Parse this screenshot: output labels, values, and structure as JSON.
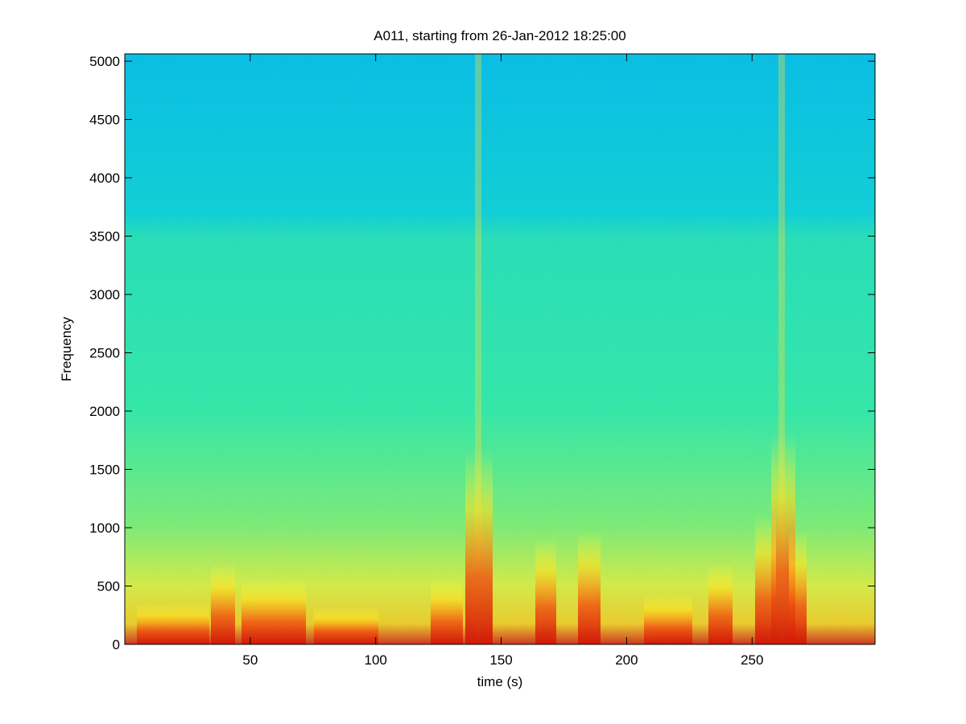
{
  "chart_data": {
    "type": "spectrogram",
    "title": "A011, starting from 26-Jan-2012 18:25:00",
    "x_label": "time (s)",
    "y_label": "Frequency",
    "xlim": [
      0,
      299
    ],
    "xticks": [
      50,
      100,
      150,
      200,
      250
    ],
    "ylim": [
      0,
      5062
    ],
    "yticks": [
      0,
      500,
      1000,
      1500,
      2000,
      2500,
      3000,
      3500,
      4000,
      4500,
      5000
    ]
  }
}
